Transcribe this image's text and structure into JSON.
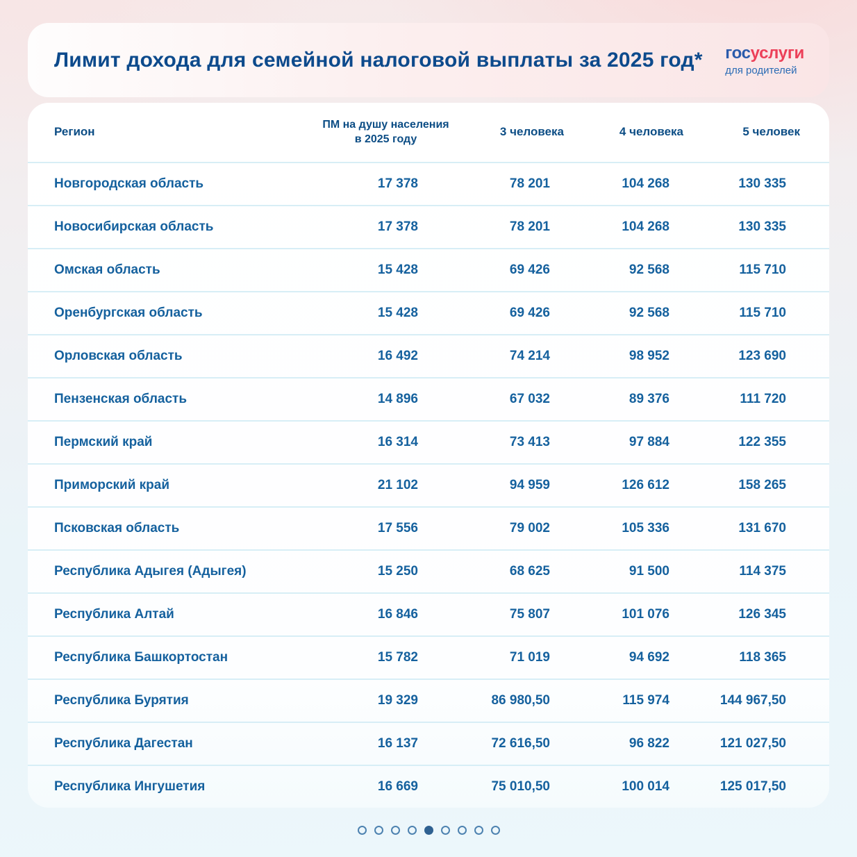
{
  "header": {
    "title": "Лимит дохода для семейной налоговой выплаты за 2025 год*",
    "logo": {
      "part1": "гос",
      "part2": "услуги",
      "tagline": "для родителей"
    }
  },
  "chart_data": {
    "type": "table",
    "title": "Лимит дохода для семейной налоговой выплаты за 2025 год*",
    "columns": [
      "Регион",
      "ПМ на душу населения в 2025 году",
      "3 человека",
      "4 человека",
      "5 человек"
    ],
    "rows": [
      [
        "Новгородская область",
        "17 378",
        "78 201",
        "104 268",
        "130 335"
      ],
      [
        "Новосибирская область",
        "17 378",
        "78 201",
        "104 268",
        "130 335"
      ],
      [
        "Омская область",
        "15 428",
        "69 426",
        "92 568",
        "115 710"
      ],
      [
        "Оренбургская область",
        "15 428",
        "69 426",
        "92 568",
        "115 710"
      ],
      [
        "Орловская область",
        "16 492",
        "74 214",
        "98 952",
        "123 690"
      ],
      [
        "Пензенская область",
        "14 896",
        "67 032",
        "89 376",
        "111 720"
      ],
      [
        "Пермский край",
        "16 314",
        "73 413",
        "97 884",
        "122 355"
      ],
      [
        "Приморский край",
        "21 102",
        "94 959",
        "126 612",
        "158 265"
      ],
      [
        "Псковская область",
        "17 556",
        "79 002",
        "105 336",
        "131 670"
      ],
      [
        "Республика Адыгея (Адыгея)",
        "15 250",
        "68 625",
        "91 500",
        "114 375"
      ],
      [
        "Республика Алтай",
        "16 846",
        "75 807",
        "101 076",
        "126 345"
      ],
      [
        "Республика Башкортостан",
        "15 782",
        "71 019",
        "94 692",
        "118 365"
      ],
      [
        "Республика Бурятия",
        "19 329",
        "86 980,50",
        "115 974",
        "144 967,50"
      ],
      [
        "Республика Дагестан",
        "16 137",
        "72 616,50",
        "96 822",
        "121 027,50"
      ],
      [
        "Республика Ингушетия",
        "16 669",
        "75 010,50",
        "100 014",
        "125 017,50"
      ]
    ]
  },
  "pagination": {
    "total_dots": 9,
    "active_index": 4
  },
  "colors": {
    "title_color": "#0d4a8c",
    "text_color": "#15619e",
    "header_color": "#0c4d85",
    "divider": "#d7eef6",
    "logo_blue": "#2a5bab",
    "logo_red": "#ec4059",
    "tagline_blue": "#2a6cb5",
    "dot": "#4d82b0",
    "dot_active": "#2f6191"
  }
}
